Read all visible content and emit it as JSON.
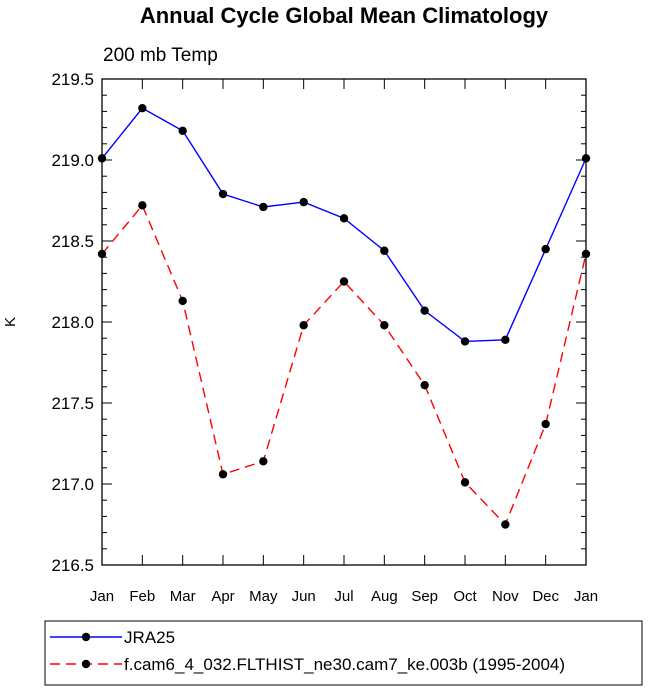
{
  "chart_data": {
    "type": "line",
    "title": "Annual Cycle Global Mean Climatology",
    "subtitle": "200 mb Temp",
    "xlabel": "",
    "ylabel": "K",
    "categories": [
      "Jan",
      "Feb",
      "Mar",
      "Apr",
      "May",
      "Jun",
      "Jul",
      "Aug",
      "Sep",
      "Oct",
      "Nov",
      "Dec",
      "Jan"
    ],
    "ylim": [
      216.5,
      219.5
    ],
    "yticks": [
      "216.5",
      "217.0",
      "217.5",
      "218.0",
      "218.5",
      "219.0",
      "219.5"
    ],
    "grid": false,
    "legend_position": "bottom",
    "series": [
      {
        "name": "JRA25",
        "color": "#0000ff",
        "line_style": "solid",
        "marker": "filled-circle",
        "values": [
          219.01,
          219.32,
          219.18,
          218.79,
          218.71,
          218.74,
          218.64,
          218.44,
          218.07,
          217.88,
          217.89,
          218.45,
          219.01
        ]
      },
      {
        "name": "f.cam6_4_032.FLTHIST_ne30.cam7_ke.003b (1995-2004)",
        "color": "#ff0000",
        "line_style": "dashed",
        "marker": "filled-circle",
        "values": [
          218.42,
          218.72,
          218.13,
          217.06,
          217.14,
          217.98,
          218.25,
          217.98,
          217.61,
          217.01,
          216.75,
          217.37,
          218.42
        ]
      }
    ]
  }
}
